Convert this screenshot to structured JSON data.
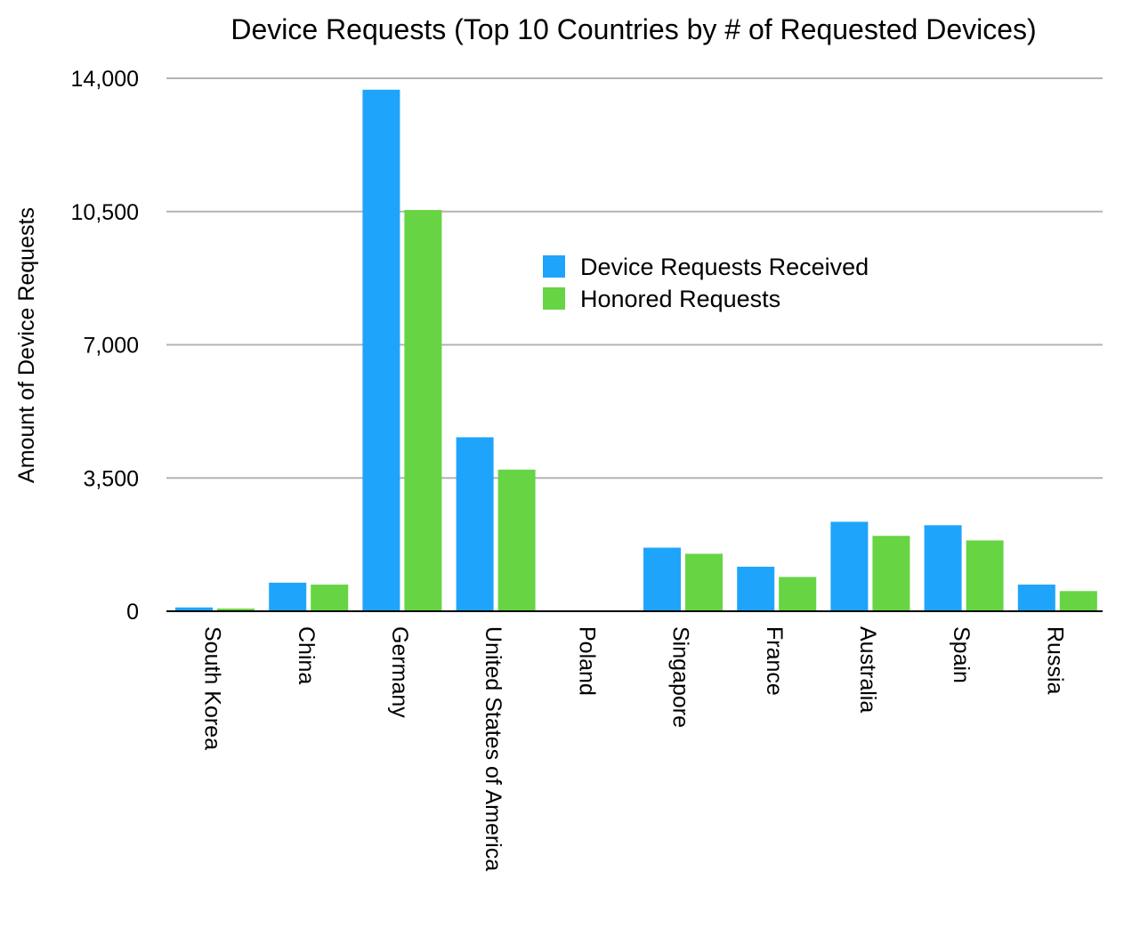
{
  "chart_data": {
    "type": "bar",
    "title": "Device Requests (Top 10 Countries by # of Requested Devices)",
    "xlabel": "",
    "ylabel": "Amount of Device Requests",
    "ylim": [
      0,
      14000
    ],
    "yticks": [
      0,
      3500,
      7000,
      10500,
      14000
    ],
    "ytick_labels": [
      "0",
      "3,500",
      "7,000",
      "10,500",
      "14,000"
    ],
    "grid": true,
    "legend_position": "center-right",
    "categories": [
      "South Korea",
      "China",
      "Germany",
      "United States of America",
      "Poland",
      "Singapore",
      "France",
      "Australia",
      "Spain",
      "Russia"
    ],
    "series": [
      {
        "name": "Device Requests Received",
        "color": "#1fa4fb",
        "values": [
          100,
          750,
          13700,
          4570,
          0,
          1670,
          1170,
          2350,
          2260,
          700
        ]
      },
      {
        "name": "Honored Requests",
        "color": "#66d443",
        "values": [
          70,
          700,
          10540,
          3720,
          0,
          1510,
          900,
          1980,
          1860,
          530
        ]
      }
    ]
  }
}
